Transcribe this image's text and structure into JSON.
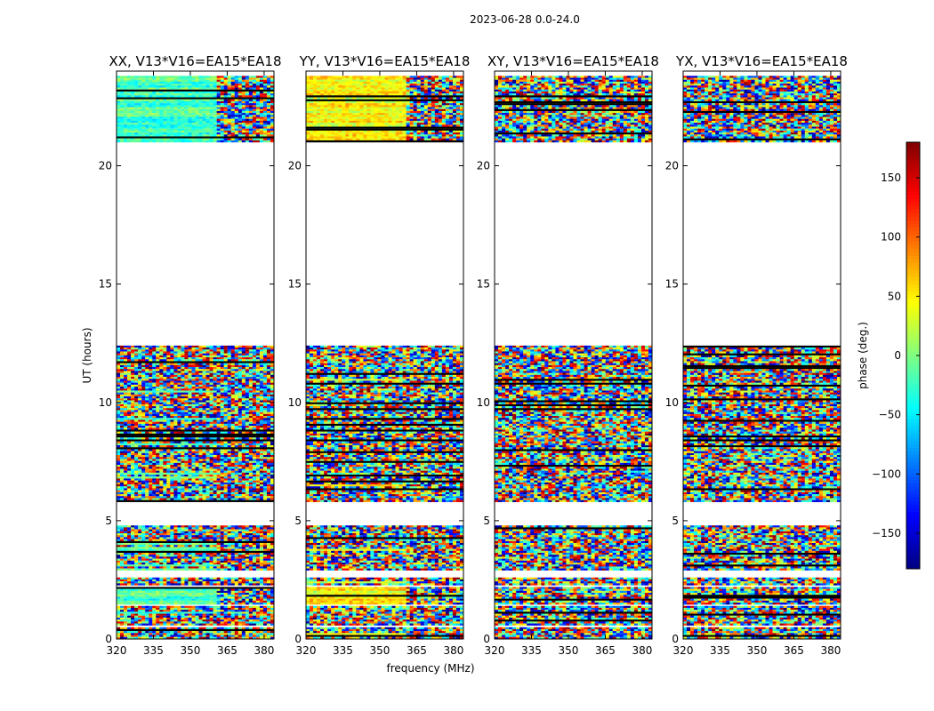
{
  "chart_data": {
    "type": "heatmap",
    "suptitle": "2023-06-28 0.0-24.0",
    "xlabel": "frequency (MHz)",
    "ylabel": "UT (hours)",
    "xlim": [
      320,
      384
    ],
    "ylim": [
      0,
      24
    ],
    "xticks": [
      320,
      335,
      350,
      365,
      380
    ],
    "yticks": [
      0,
      5,
      10,
      15,
      20
    ],
    "colorbar": {
      "label": "phase (deg.)",
      "range": [
        -180,
        180
      ],
      "ticks": [
        150,
        100,
        50,
        0,
        -50,
        -100,
        -150
      ],
      "tick_labels": [
        "150",
        "100",
        "50",
        "0",
        "−50",
        "−100",
        "−150"
      ],
      "colormap": "jet"
    },
    "observed_hour_ranges": [
      [
        0.05,
        0.5
      ],
      [
        0.6,
        1.4
      ],
      [
        1.5,
        2.2
      ],
      [
        2.3,
        2.6
      ],
      [
        2.9,
        4.8
      ],
      [
        5.8,
        12.4
      ],
      [
        21.0,
        23.8
      ]
    ],
    "panels": [
      {
        "title": "XX, V13*V16=EA15*EA18",
        "pol": "XX",
        "coherent_phase_deg": -20
      },
      {
        "title": "YY, V13*V16=EA15*EA18",
        "pol": "YY",
        "coherent_phase_deg": 45
      },
      {
        "title": "XY, V13*V16=EA15*EA18",
        "pol": "XY",
        "coherent_phase_deg": null
      },
      {
        "title": "YX, V13*V16=EA15*EA18",
        "pol": "YX",
        "coherent_phase_deg": null
      }
    ]
  }
}
